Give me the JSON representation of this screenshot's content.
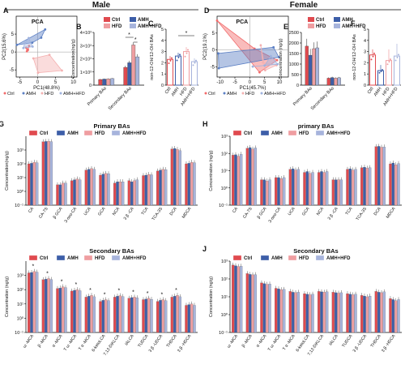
{
  "colors": {
    "ctrl": "#e04a4f",
    "amh": "#3d5ea8",
    "hfd": "#ef9ea1",
    "amhhfd": "#a7b4dc",
    "pca_ctrl": "#f26b6b",
    "pca_amh": "#5b7fc4",
    "pca_hfd": "#f4b1b1",
    "pca_amhhfd": "#9fb3df"
  },
  "sections": {
    "male": "Male",
    "female": "Female"
  },
  "legend_groups": [
    "Ctrl",
    "AMH",
    "HFD",
    "AMH+HFD"
  ],
  "panel_letters": [
    "A",
    "B",
    "C",
    "D",
    "E",
    "F",
    "G",
    "H",
    "I",
    "J"
  ],
  "chart_data": [
    {
      "id": "A",
      "type": "scatter",
      "title": "PCA",
      "xlabel": "PC1(48.8%)",
      "ylabel": "PC2(15.6%)",
      "xlim": [
        -6,
        11
      ],
      "ylim": [
        -7,
        10
      ],
      "xticks": [
        -5,
        0,
        5,
        10
      ],
      "yticks": [
        -5,
        0,
        5
      ],
      "groups": [
        {
          "name": "Ctrl",
          "points": [
            [
              -3.2,
              1.2
            ],
            [
              -2.7,
              0.6
            ],
            [
              -2.4,
              1.7
            ],
            [
              -3.0,
              0.2
            ]
          ]
        },
        {
          "name": "AMH",
          "points": [
            [
              -5.8,
              2.0
            ],
            [
              2.1,
              6.3
            ],
            [
              1.0,
              4.0
            ],
            [
              -1.5,
              2.6
            ]
          ]
        },
        {
          "name": "HFD",
          "points": [
            [
              -1.2,
              -1.8
            ],
            [
              0.1,
              -5.8
            ],
            [
              6.8,
              -5.2
            ],
            [
              3.3,
              -0.8
            ]
          ]
        },
        {
          "name": "AMH+HFD",
          "points": [
            [
              -3.6,
              2.5
            ],
            [
              -2.5,
              3.9
            ],
            [
              -1.4,
              1.5
            ],
            [
              -4.0,
              1.1
            ]
          ]
        }
      ]
    },
    {
      "id": "B",
      "type": "bar",
      "ylabel": "Concentration(ng/g)",
      "categories": [
        "Primary BAs",
        "Secondary BAs"
      ],
      "ylim": [
        0,
        4000
      ],
      "yticks": [
        "0",
        "1×10³",
        "2×10³",
        "3×10³",
        "4×10³"
      ],
      "series": [
        {
          "name": "Ctrl",
          "values": [
            430,
            1350
          ]
        },
        {
          "name": "AMH",
          "values": [
            460,
            1700
          ]
        },
        {
          "name": "HFD",
          "values": [
            470,
            3050
          ]
        },
        {
          "name": "AMH+HFD",
          "values": [
            500,
            2150
          ]
        }
      ],
      "errors": [
        [
          40,
          120
        ],
        [
          40,
          150
        ],
        [
          50,
          200
        ],
        [
          40,
          200
        ]
      ],
      "annotations": [
        "*",
        "*"
      ]
    },
    {
      "id": "C",
      "type": "bar",
      "ylabel": "non-12-OH/12-OH BAs",
      "categories": [
        "Ctrl",
        "AMH",
        "HFD",
        "AMH+HFD"
      ],
      "ylim": [
        0,
        5
      ],
      "yticks": [
        "0",
        "1",
        "2",
        "3",
        "4",
        "5"
      ],
      "values": [
        2.3,
        2.6,
        3.0,
        2.1
      ],
      "errors": [
        0.3,
        0.3,
        0.4,
        0.3
      ],
      "annotations": [
        "*"
      ]
    },
    {
      "id": "D",
      "type": "scatter",
      "title": "PCA",
      "xlabel": "PC1(45.7%)",
      "ylabel": "PC2(19.1%)",
      "xlim": [
        -11,
        13
      ],
      "ylim": [
        -8,
        10
      ],
      "xticks": [
        -10,
        -5,
        0,
        5,
        10
      ],
      "yticks": [
        -5,
        0,
        5
      ],
      "groups": [
        {
          "name": "Ctrl",
          "points": [
            [
              -11,
              8.7
            ],
            [
              1.6,
              0.4
            ],
            [
              9.2,
              -3.0
            ],
            [
              3.3,
              -6.6
            ]
          ]
        },
        {
          "name": "AMH",
          "points": [
            [
              -10.4,
              -5.4
            ],
            [
              -10.6,
              -1.0
            ],
            [
              8.0,
              0.8
            ],
            [
              9.8,
              -2.1
            ]
          ]
        },
        {
          "name": "HFD",
          "points": [
            [
              3.7,
              1.4
            ],
            [
              5.2,
              -6.0
            ],
            [
              9.0,
              -4.5
            ],
            [
              4.4,
              -3.7
            ]
          ]
        },
        {
          "name": "AMH+HFD",
          "points": [
            [
              1.0,
              -4.9
            ],
            [
              5.0,
              -4.6
            ],
            [
              7.1,
              -1.8
            ],
            [
              9.4,
              -4.2
            ]
          ]
        }
      ]
    },
    {
      "id": "E",
      "type": "bar",
      "ylabel": "Concentration (ng/g)",
      "categories": [
        "Primary BAs",
        "Secondary BAs"
      ],
      "ylim": [
        0,
        2500
      ],
      "yticks": [
        "0",
        "500",
        "1000",
        "1500",
        "2000",
        "2500"
      ],
      "series": [
        {
          "name": "Ctrl",
          "values": [
            1850,
            330
          ]
        },
        {
          "name": "AMH",
          "values": [
            1420,
            360
          ]
        },
        {
          "name": "HFD",
          "values": [
            1730,
            330
          ]
        },
        {
          "name": "AMH+HFD",
          "values": [
            1770,
            350
          ]
        }
      ],
      "errors": [
        [
          350,
          40
        ],
        [
          300,
          40
        ],
        [
          300,
          40
        ],
        [
          300,
          40
        ]
      ]
    },
    {
      "id": "F",
      "type": "bar",
      "ylabel": "non-12-OH/12-OH BAs",
      "categories": [
        "Ctrl",
        "AMH",
        "HFD",
        "AMH+HFD"
      ],
      "ylim": [
        0,
        5
      ],
      "yticks": [
        "0",
        "1",
        "2",
        "3",
        "4",
        "5"
      ],
      "values": [
        2.7,
        1.3,
        2.2,
        2.6
      ],
      "errors": [
        0.5,
        0.5,
        1.0,
        1.1
      ]
    },
    {
      "id": "G",
      "type": "bar",
      "title": "Primary BAs",
      "ylabel": "Concentration(ng/g)",
      "log": true,
      "ylim": [
        -1,
        4
      ],
      "ytick_labels": [
        "10³",
        "10²",
        "10¹",
        "10⁰",
        "10⁻¹"
      ],
      "categories": [
        "CA",
        "CA-7S",
        "β GCA",
        "3-oxo-CA",
        "UCA",
        "GCA",
        "NCA",
        "3 β -CA",
        "TCA",
        "TCA-3S",
        "DCA",
        "MDCA"
      ],
      "series": [
        {
          "name": "Ctrl",
          "values": [
            100,
            4000,
            3,
            6,
            35,
            15,
            4,
            6,
            14,
            30,
            1200,
            100
          ]
        },
        {
          "name": "AMH",
          "values": [
            110,
            4200,
            3,
            7,
            40,
            18,
            5,
            5,
            15,
            35,
            1300,
            110
          ]
        },
        {
          "name": "HFD",
          "values": [
            130,
            4300,
            4,
            8,
            45,
            20,
            5,
            6,
            17,
            40,
            1100,
            130
          ]
        },
        {
          "name": "AMH+HFD",
          "values": [
            120,
            4100,
            4,
            7,
            40,
            19,
            5,
            7,
            16,
            38,
            900,
            120
          ]
        }
      ]
    },
    {
      "id": "H",
      "type": "bar",
      "title": "primary BAs",
      "ylabel": "Concentration (ng/g)",
      "log": true,
      "ylim": [
        -1,
        3
      ],
      "ytick_labels": [
        "10³",
        "10²",
        "10¹",
        "10⁰",
        "10⁻¹"
      ],
      "categories": [
        "CA",
        "CA-7S",
        "β GCA",
        "3-oxo-CA",
        "UCA",
        "GCA",
        "NCA",
        "3 β -CA",
        "TCA",
        "TCA-3S",
        "DCA",
        "MDCA"
      ],
      "series": [
        {
          "name": "Ctrl",
          "values": [
            80,
            200,
            3,
            4,
            12,
            8,
            8,
            3,
            12,
            15,
            250,
            25
          ]
        },
        {
          "name": "AMH",
          "values": [
            85,
            220,
            3,
            4,
            13,
            9,
            9,
            3,
            13,
            16,
            260,
            28
          ]
        },
        {
          "name": "HFD",
          "values": [
            70,
            180,
            2.5,
            3.5,
            11,
            7,
            8,
            3,
            11,
            14,
            230,
            22
          ]
        },
        {
          "name": "AMH+HFD",
          "values": [
            90,
            210,
            3,
            4,
            12,
            8,
            9,
            3,
            12,
            15,
            240,
            26
          ]
        }
      ]
    },
    {
      "id": "I",
      "type": "bar",
      "title": "Secondary BAs",
      "ylabel": "Concentration (ng/g)",
      "log": true,
      "ylim": [
        -1,
        4
      ],
      "ytick_labels": [
        "10³",
        "10²",
        "10¹",
        "10⁰",
        "10⁻¹"
      ],
      "categories": [
        "ω -MCA",
        "β -MCA",
        "α -MCA",
        "T ω -MCA",
        "T α -MCA",
        "6-ketoLCA",
        "7,12-DiKLCA",
        "IALCA",
        "TUDCA",
        "3 β -UDCA",
        "THDCA",
        "3 β -HDCA"
      ],
      "series": [
        {
          "name": "Ctrl",
          "values": [
            1500,
            500,
            120,
            80,
            30,
            15,
            30,
            25,
            20,
            15,
            30,
            8
          ]
        },
        {
          "name": "AMH",
          "values": [
            1600,
            550,
            130,
            90,
            35,
            18,
            35,
            28,
            22,
            18,
            35,
            9
          ]
        },
        {
          "name": "HFD",
          "values": [
            1900,
            600,
            160,
            100,
            40,
            20,
            38,
            30,
            25,
            20,
            40,
            10
          ]
        },
        {
          "name": "AMH+HFD",
          "values": [
            1700,
            520,
            140,
            85,
            32,
            17,
            33,
            27,
            21,
            17,
            32,
            8
          ]
        }
      ],
      "annotations": [
        "*",
        "*",
        "*",
        "*",
        "*",
        "*",
        "*",
        "*",
        "*",
        "*",
        "*"
      ]
    },
    {
      "id": "J",
      "type": "bar",
      "title": "Secondary BAs",
      "ylabel": "Concentration (ng/g)",
      "log": true,
      "ylim": [
        -1,
        3
      ],
      "ytick_labels": [
        "10³",
        "10²",
        "10¹",
        "10⁰",
        "10⁻¹"
      ],
      "categories": [
        "ω -MCA",
        "β -MCA",
        "α -MCA",
        "T ω -MCA",
        "T α -MCA",
        "6-ketoLCA",
        "7,12-DiKLCA",
        "IALCA",
        "TUDCA",
        "3 β -UDCA",
        "THDCA",
        "3 β -HDCA"
      ],
      "series": [
        {
          "name": "Ctrl",
          "values": [
            600,
            200,
            60,
            30,
            20,
            15,
            20,
            18,
            15,
            12,
            20,
            8
          ]
        },
        {
          "name": "AMH",
          "values": [
            550,
            180,
            55,
            28,
            18,
            14,
            19,
            17,
            14,
            11,
            18,
            7
          ]
        },
        {
          "name": "HFD",
          "values": [
            500,
            170,
            50,
            25,
            17,
            13,
            18,
            16,
            13,
            10,
            17,
            6
          ]
        },
        {
          "name": "AMH+HFD",
          "values": [
            520,
            175,
            52,
            26,
            18,
            14,
            19,
            17,
            14,
            11,
            19,
            7
          ]
        }
      ]
    }
  ]
}
